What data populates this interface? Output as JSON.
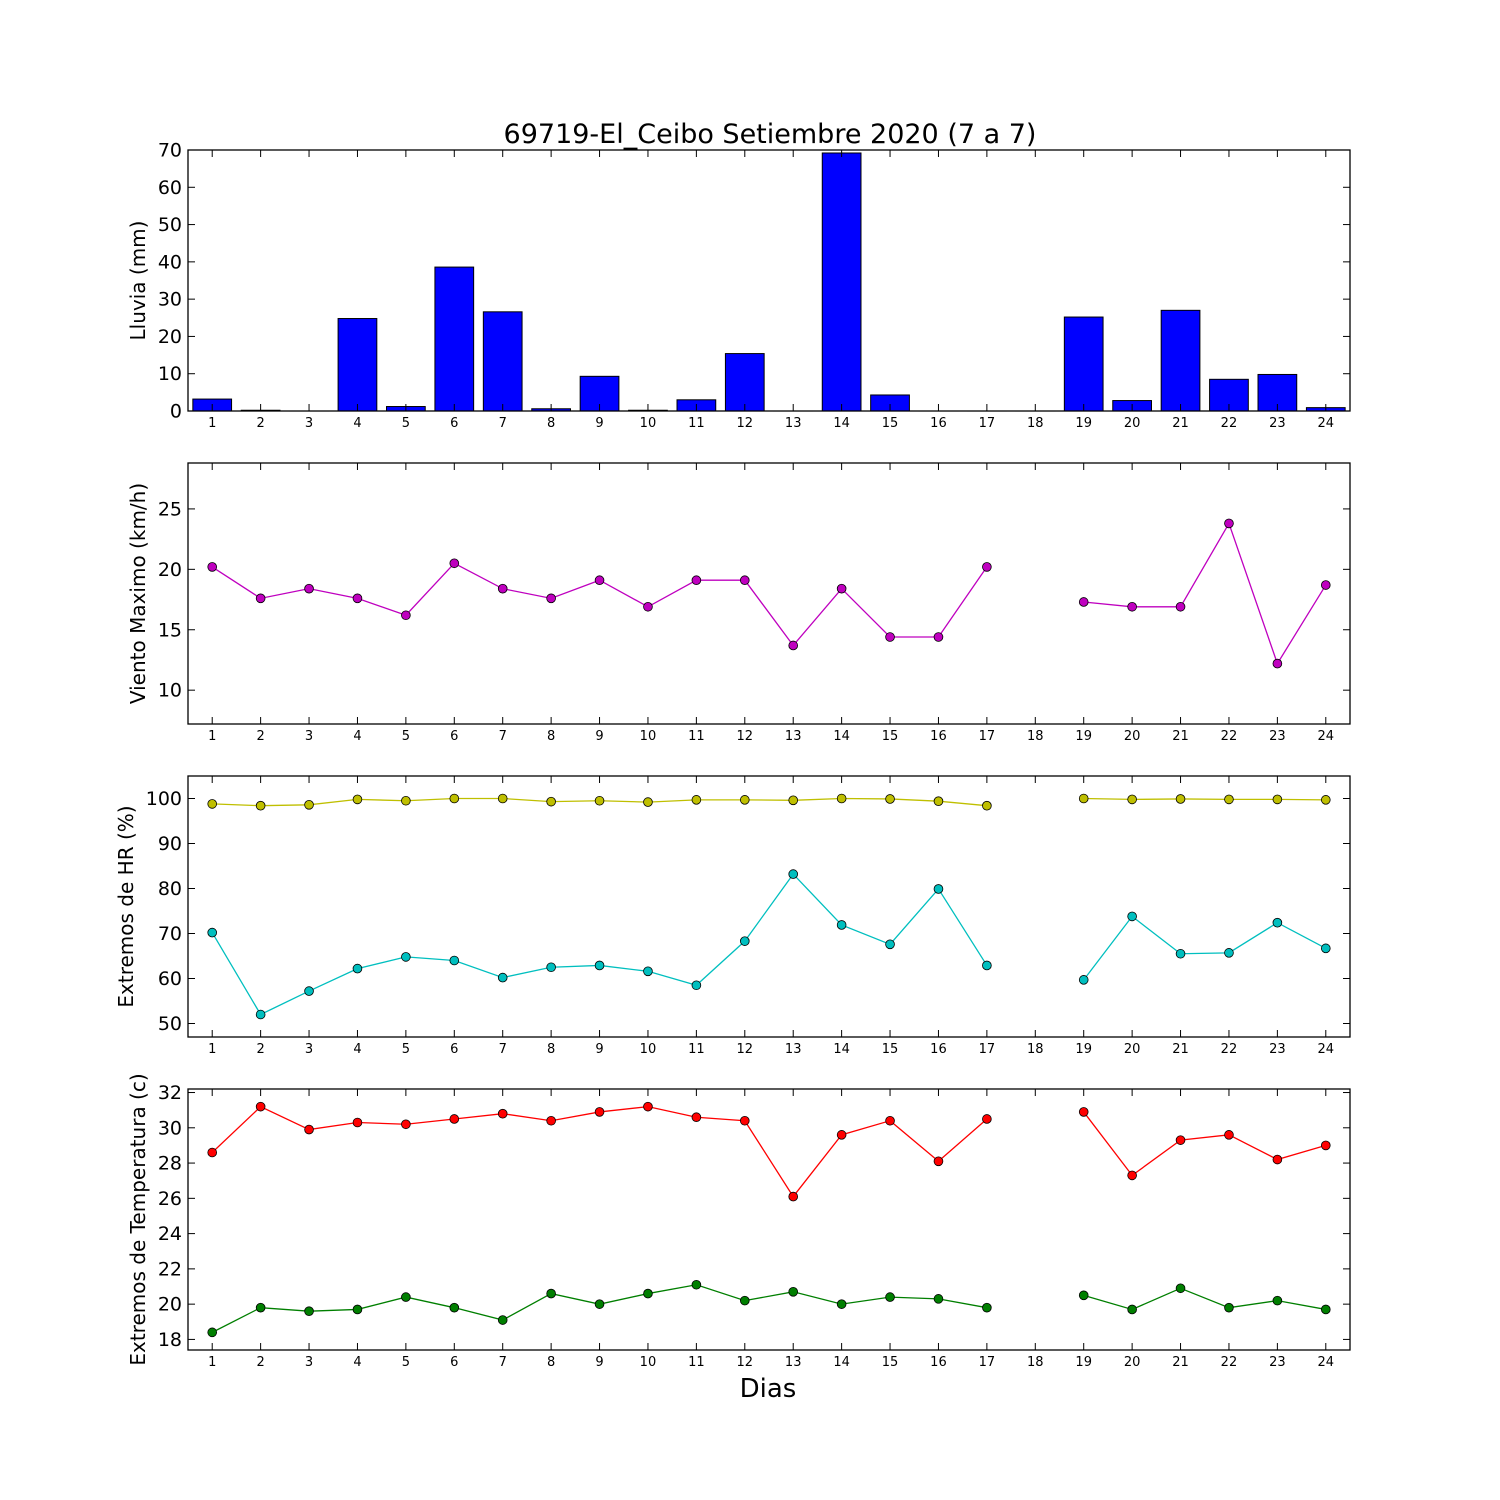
{
  "chart_data": {
    "type": "multi-panel",
    "title": "69719-El_Ceibo Setiembre 2020  (7 a 7)",
    "xlabel": "Dias",
    "x": [
      1,
      2,
      3,
      4,
      5,
      6,
      7,
      8,
      9,
      10,
      11,
      12,
      13,
      14,
      15,
      16,
      17,
      18,
      19,
      20,
      21,
      22,
      23,
      24
    ],
    "panels": [
      {
        "type": "bar",
        "ylabel": "Lluvia (mm)",
        "ylim": [
          0,
          70
        ],
        "yticks": [
          0,
          10,
          20,
          30,
          40,
          50,
          60,
          70
        ],
        "series": [
          {
            "color": "#0000ff",
            "values": [
              3.2,
              0.2,
              0,
              24.8,
              1.2,
              38.6,
              26.6,
              0.6,
              9.3,
              0.2,
              3.0,
              15.4,
              0,
              69.2,
              4.3,
              0,
              0,
              0,
              25.2,
              2.8,
              27.0,
              8.5,
              9.8,
              0.9
            ]
          }
        ]
      },
      {
        "type": "line",
        "ylabel": "Viento Maximo (km/h)",
        "ylim": [
          7.2,
          28.8
        ],
        "yticks": [
          10,
          15,
          20,
          25
        ],
        "series": [
          {
            "color": "#bf00bf",
            "values": [
              20.2,
              17.6,
              18.4,
              17.6,
              16.2,
              20.5,
              18.4,
              17.6,
              19.1,
              16.9,
              19.1,
              19.1,
              13.7,
              18.4,
              14.4,
              14.4,
              20.2,
              null,
              17.3,
              16.9,
              16.9,
              23.8,
              12.2,
              18.7
            ]
          }
        ]
      },
      {
        "type": "line",
        "ylabel": "Extremos de HR (%)",
        "ylim": [
          47,
          105
        ],
        "yticks": [
          50,
          60,
          70,
          80,
          90,
          100
        ],
        "series": [
          {
            "color": "#bfbf00",
            "values": [
              98.8,
              98.4,
              98.6,
              99.8,
              99.5,
              100,
              100,
              99.3,
              99.5,
              99.2,
              99.7,
              99.7,
              99.6,
              100,
              99.9,
              99.4,
              98.4,
              null,
              100,
              99.8,
              99.9,
              99.8,
              99.8,
              99.7
            ]
          },
          {
            "color": "#00bfbf",
            "values": [
              70.2,
              52.0,
              57.2,
              62.2,
              64.8,
              64.0,
              60.2,
              62.5,
              62.9,
              61.6,
              58.5,
              68.3,
              83.2,
              71.9,
              67.6,
              79.9,
              62.9,
              null,
              59.7,
              73.8,
              65.5,
              65.7,
              72.4,
              66.7
            ]
          }
        ]
      },
      {
        "type": "line",
        "ylabel": "Extremos de Temperatura (c)",
        "ylim": [
          17.4,
          32.2
        ],
        "yticks": [
          18,
          20,
          22,
          24,
          26,
          28,
          30,
          32
        ],
        "series": [
          {
            "color": "#ff0000",
            "values": [
              28.6,
              31.2,
              29.9,
              30.3,
              30.2,
              30.5,
              30.8,
              30.4,
              30.9,
              31.2,
              30.6,
              30.4,
              26.1,
              29.6,
              30.4,
              28.1,
              30.5,
              null,
              30.9,
              27.3,
              29.3,
              29.6,
              28.2,
              29.0
            ]
          },
          {
            "color": "#007f00",
            "values": [
              18.4,
              19.8,
              19.6,
              19.7,
              20.4,
              19.8,
              19.1,
              20.6,
              20.0,
              20.6,
              21.1,
              20.2,
              20.7,
              20.0,
              20.4,
              20.3,
              19.8,
              null,
              20.5,
              19.7,
              20.9,
              19.8,
              20.2,
              19.7
            ]
          }
        ]
      }
    ]
  }
}
